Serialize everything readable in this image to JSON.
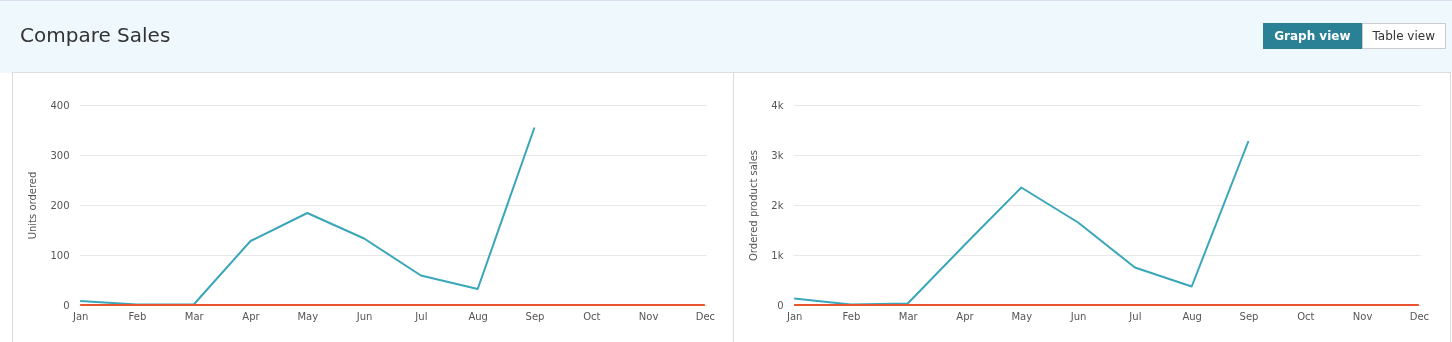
{
  "chart_data": [
    {
      "type": "line",
      "title": "Compare Sales",
      "ylabel": "Units ordered",
      "categories": [
        "Jan",
        "Feb",
        "Mar",
        "Apr",
        "May",
        "Jun",
        "Jul",
        "Aug",
        "Sep",
        "Oct",
        "Nov",
        "Dec"
      ],
      "series": [
        {
          "color": "#3aa6b9",
          "values": [
            8,
            1,
            1,
            128,
            184,
            133,
            59,
            32,
            355,
            null,
            null,
            null
          ]
        },
        {
          "color": "#e8552f",
          "values": [
            0,
            0,
            0,
            0,
            0,
            0,
            0,
            0,
            0,
            0,
            0,
            0
          ]
        }
      ],
      "ylim": [
        0,
        400
      ],
      "yticks": [
        0,
        100,
        200,
        300,
        400
      ],
      "grid": "y",
      "marker": "none"
    },
    {
      "type": "line",
      "ylabel": "Ordered product sales",
      "categories": [
        "Jan",
        "Feb",
        "Mar",
        "Apr",
        "May",
        "Jun",
        "Jul",
        "Aug",
        "Sep",
        "Oct",
        "Nov",
        "Dec"
      ],
      "series": [
        {
          "color": "#3aa6b9",
          "values": [
            130,
            10,
            30,
            1200,
            2350,
            1650,
            750,
            370,
            3280,
            null,
            null,
            null
          ]
        },
        {
          "color": "#e8552f",
          "values": [
            0,
            0,
            0,
            0,
            0,
            0,
            0,
            0,
            0,
            0,
            0,
            0
          ]
        }
      ],
      "ylim": [
        0,
        4000
      ],
      "yticks": [
        0,
        {
          "value": 1000,
          "label": "1k"
        },
        {
          "value": 2000,
          "label": "2k"
        },
        {
          "value": 3000,
          "label": "3k"
        },
        {
          "value": 4000,
          "label": "4k"
        }
      ],
      "grid": "y",
      "marker": "none",
      "annotations": [
        "Graph view",
        "Table view"
      ]
    }
  ]
}
